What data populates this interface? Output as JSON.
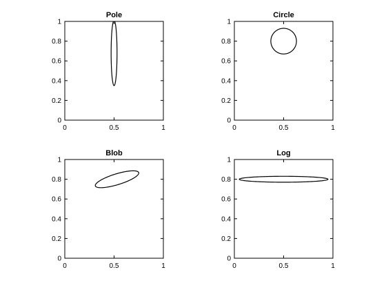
{
  "chart_data": [
    {
      "type": "line",
      "title": "Pole",
      "xlim": [
        0,
        1
      ],
      "ylim": [
        0,
        1
      ],
      "xticks": [
        "0",
        "0.5",
        "1"
      ],
      "yticks": [
        "0",
        "0.2",
        "0.4",
        "0.6",
        "0.8",
        "1"
      ],
      "shape": "ellipse",
      "center": [
        0.5,
        0.68
      ],
      "semi_axes": [
        0.03,
        0.33
      ],
      "angle_deg": 0,
      "clipped_to_axes": true,
      "color": "#000000"
    },
    {
      "type": "line",
      "title": "Circle",
      "xlim": [
        0,
        1
      ],
      "ylim": [
        0,
        1
      ],
      "xticks": [
        "0",
        "0.5",
        "1"
      ],
      "yticks": [
        "0",
        "0.2",
        "0.4",
        "0.6",
        "0.8",
        "1"
      ],
      "shape": "ellipse",
      "center": [
        0.5,
        0.8
      ],
      "semi_axes": [
        0.13,
        0.13
      ],
      "angle_deg": 0,
      "clipped_to_axes": true,
      "color": "#000000"
    },
    {
      "type": "line",
      "title": "Blob",
      "xlim": [
        0,
        1
      ],
      "ylim": [
        0,
        1
      ],
      "xticks": [
        "0",
        "0.5",
        "1"
      ],
      "yticks": [
        "0",
        "0.2",
        "0.4",
        "0.6",
        "0.8",
        "1"
      ],
      "shape": "ellipse",
      "center": [
        0.53,
        0.8
      ],
      "semi_axes": [
        0.23,
        0.055
      ],
      "angle_deg": 17,
      "clipped_to_axes": true,
      "color": "#000000"
    },
    {
      "type": "line",
      "title": "Log",
      "xlim": [
        0,
        1
      ],
      "ylim": [
        0,
        1
      ],
      "xticks": [
        "0",
        "0.5",
        "1"
      ],
      "yticks": [
        "0",
        "0.2",
        "0.4",
        "0.6",
        "0.8",
        "1"
      ],
      "shape": "ellipse",
      "center": [
        0.5,
        0.8
      ],
      "semi_axes": [
        0.45,
        0.03
      ],
      "angle_deg": 0,
      "clipped_to_axes": true,
      "color": "#000000"
    }
  ]
}
